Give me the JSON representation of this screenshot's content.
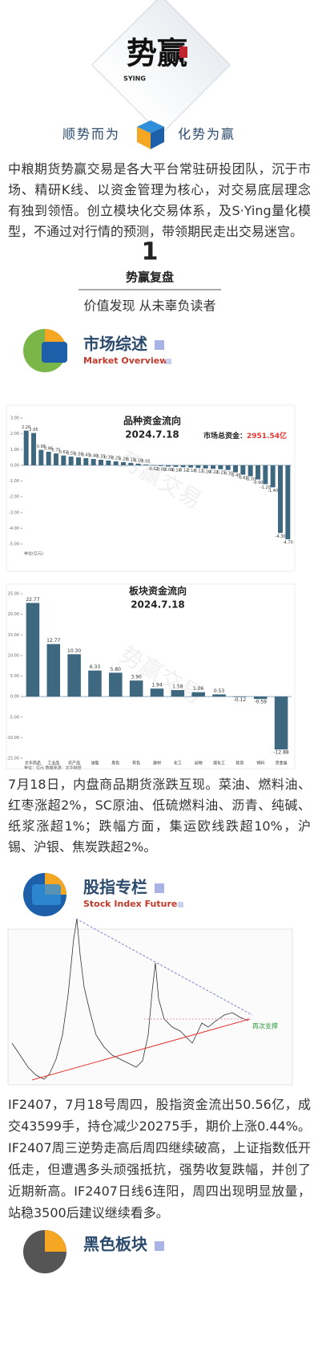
{
  "brand": "SYING",
  "slogan_left": "顺势而为",
  "slogan_right": "化势为赢",
  "intro": "中粮期货势赢交易是各大平台常驻研投团队，沉于市场、精研K线、以资金管理为核心，对交易底层理念有独到领悟。创立模块化交易体系，及S·Ying量化模型，不通过对行情的预测，带领期民走出交易迷宫。",
  "section_number": "1",
  "section_title": "势赢复盘",
  "section_tagline": "价值发现 从未辜负读者",
  "headings": [
    {
      "title": "市场综述",
      "subtitle": "Market Overview"
    },
    {
      "title": "股指专栏",
      "subtitle": "Stock Index Futures"
    },
    {
      "title": "黑色板块"
    }
  ],
  "watermark": "势赢交易",
  "chart_data": [
    {
      "type": "bar",
      "title": "品种资金流向",
      "subtitle": "2024.7.18",
      "total_label": "市场总资金：",
      "total": "2951.54亿",
      "unit": "单位(亿元)",
      "color": "#3d6880",
      "values": [
        2.2,
        2.05,
        0.98,
        0.86,
        0.75,
        0.62,
        0.55,
        0.5,
        0.45,
        0.4,
        0.35,
        0.3,
        0.25,
        0.2,
        0.15,
        0.1,
        0.05,
        -0.02,
        -0.05,
        -0.08,
        -0.1,
        -0.12,
        -0.14,
        -0.17,
        -0.2,
        -0.23,
        -0.25,
        -0.3,
        -0.45,
        -0.6,
        -0.7,
        -0.9,
        -1.2,
        -1.4,
        -4.3,
        -4.7
      ],
      "value_labels": [
        "2.20",
        "2.05",
        "0.98",
        "0.86",
        "0.75",
        "0.62",
        "0.55",
        "0.50",
        "0.45",
        "0.40",
        "0.35",
        "0.30",
        "0.25",
        "0.20",
        "0.15",
        "0.10",
        "0.05",
        "-0.02",
        "-0.05",
        "-0.08",
        "-0.10",
        "-0.12",
        "-0.14",
        "-0.17",
        "-0.20",
        "-0.23",
        "-0.25",
        "-0.30",
        "-0.45",
        "-0.60",
        "-0.70",
        "-0.90",
        "-1.20",
        "-1.40",
        "-4.30",
        "-4.70"
      ],
      "ylim": [
        -5,
        3
      ],
      "yticks": [
        {
          "value": 3,
          "label": "3.00"
        },
        {
          "value": 2,
          "label": "2.00"
        },
        {
          "value": 1,
          "label": "1.00"
        },
        {
          "value": 0,
          "label": "0.00"
        },
        {
          "value": -1,
          "label": "-1.00"
        },
        {
          "value": -2,
          "label": "-2.00"
        },
        {
          "value": -3,
          "label": "-3.00"
        },
        {
          "value": -4,
          "label": "-4.00"
        },
        {
          "value": -5,
          "label": "-5.00"
        }
      ]
    },
    {
      "type": "bar",
      "title": "板块资金流向",
      "subtitle": "2024.7.18",
      "unit": "单位：亿元 数据来源：文华财经",
      "color": "#3d6880",
      "categories": [
        "文华商品",
        "工业品",
        "农产品",
        "油脂",
        "黑色",
        "有色",
        "建材",
        "化工",
        "谷物",
        "煤化工",
        "软商",
        "饲料",
        "贵金属"
      ],
      "values": [
        22.77,
        12.77,
        10.3,
        6.33,
        5.8,
        3.9,
        1.94,
        1.58,
        1.06,
        0.53,
        -0.12,
        -0.59,
        -12.88
      ],
      "value_labels": [
        "22.77",
        "12.77",
        "10.30",
        "6.33",
        "5.80",
        "3.90",
        "1.94",
        "1.58",
        "1.06",
        "0.53",
        "-0.12",
        "-0.59",
        "-12.88"
      ],
      "ylim": [
        -15,
        25
      ],
      "yticks": [
        {
          "value": 25,
          "label": "25.00"
        },
        {
          "value": 20,
          "label": "20.00"
        },
        {
          "value": 15,
          "label": "15.00"
        },
        {
          "value": 10,
          "label": "10.00"
        },
        {
          "value": 5,
          "label": "5.00"
        },
        {
          "value": 0,
          "label": "0.00"
        },
        {
          "value": -5,
          "label": "-5.00"
        },
        {
          "value": -10,
          "label": "-10.00"
        },
        {
          "value": -15,
          "label": "-15.00"
        }
      ]
    }
  ],
  "paragraphs": [
    "7月18日，内盘商品期货涨跌互现。菜油、燃料油、红枣涨超2%，SC原油、低硫燃料油、沥青、纯碱、纸浆涨超1%；跌幅方面，集运欧线跌超10%，沪锡、沪银、焦炭跌超2%。",
    "IF2407，7月18号周四，股指资金流出50.56亿，成交43599手，持仓减少20275手，期价上涨0.44%。IF2407周三逆势走高后周四继续破高，上证指数低开低走，但遭遇多头顽强抵抗，强势收复跌幅，并创了近期新高。IF2407日线6连阳，周四出现明显放量，站稳3500后建议继续看多。"
  ],
  "index_chart": {
    "annotation": "再次支撑"
  }
}
